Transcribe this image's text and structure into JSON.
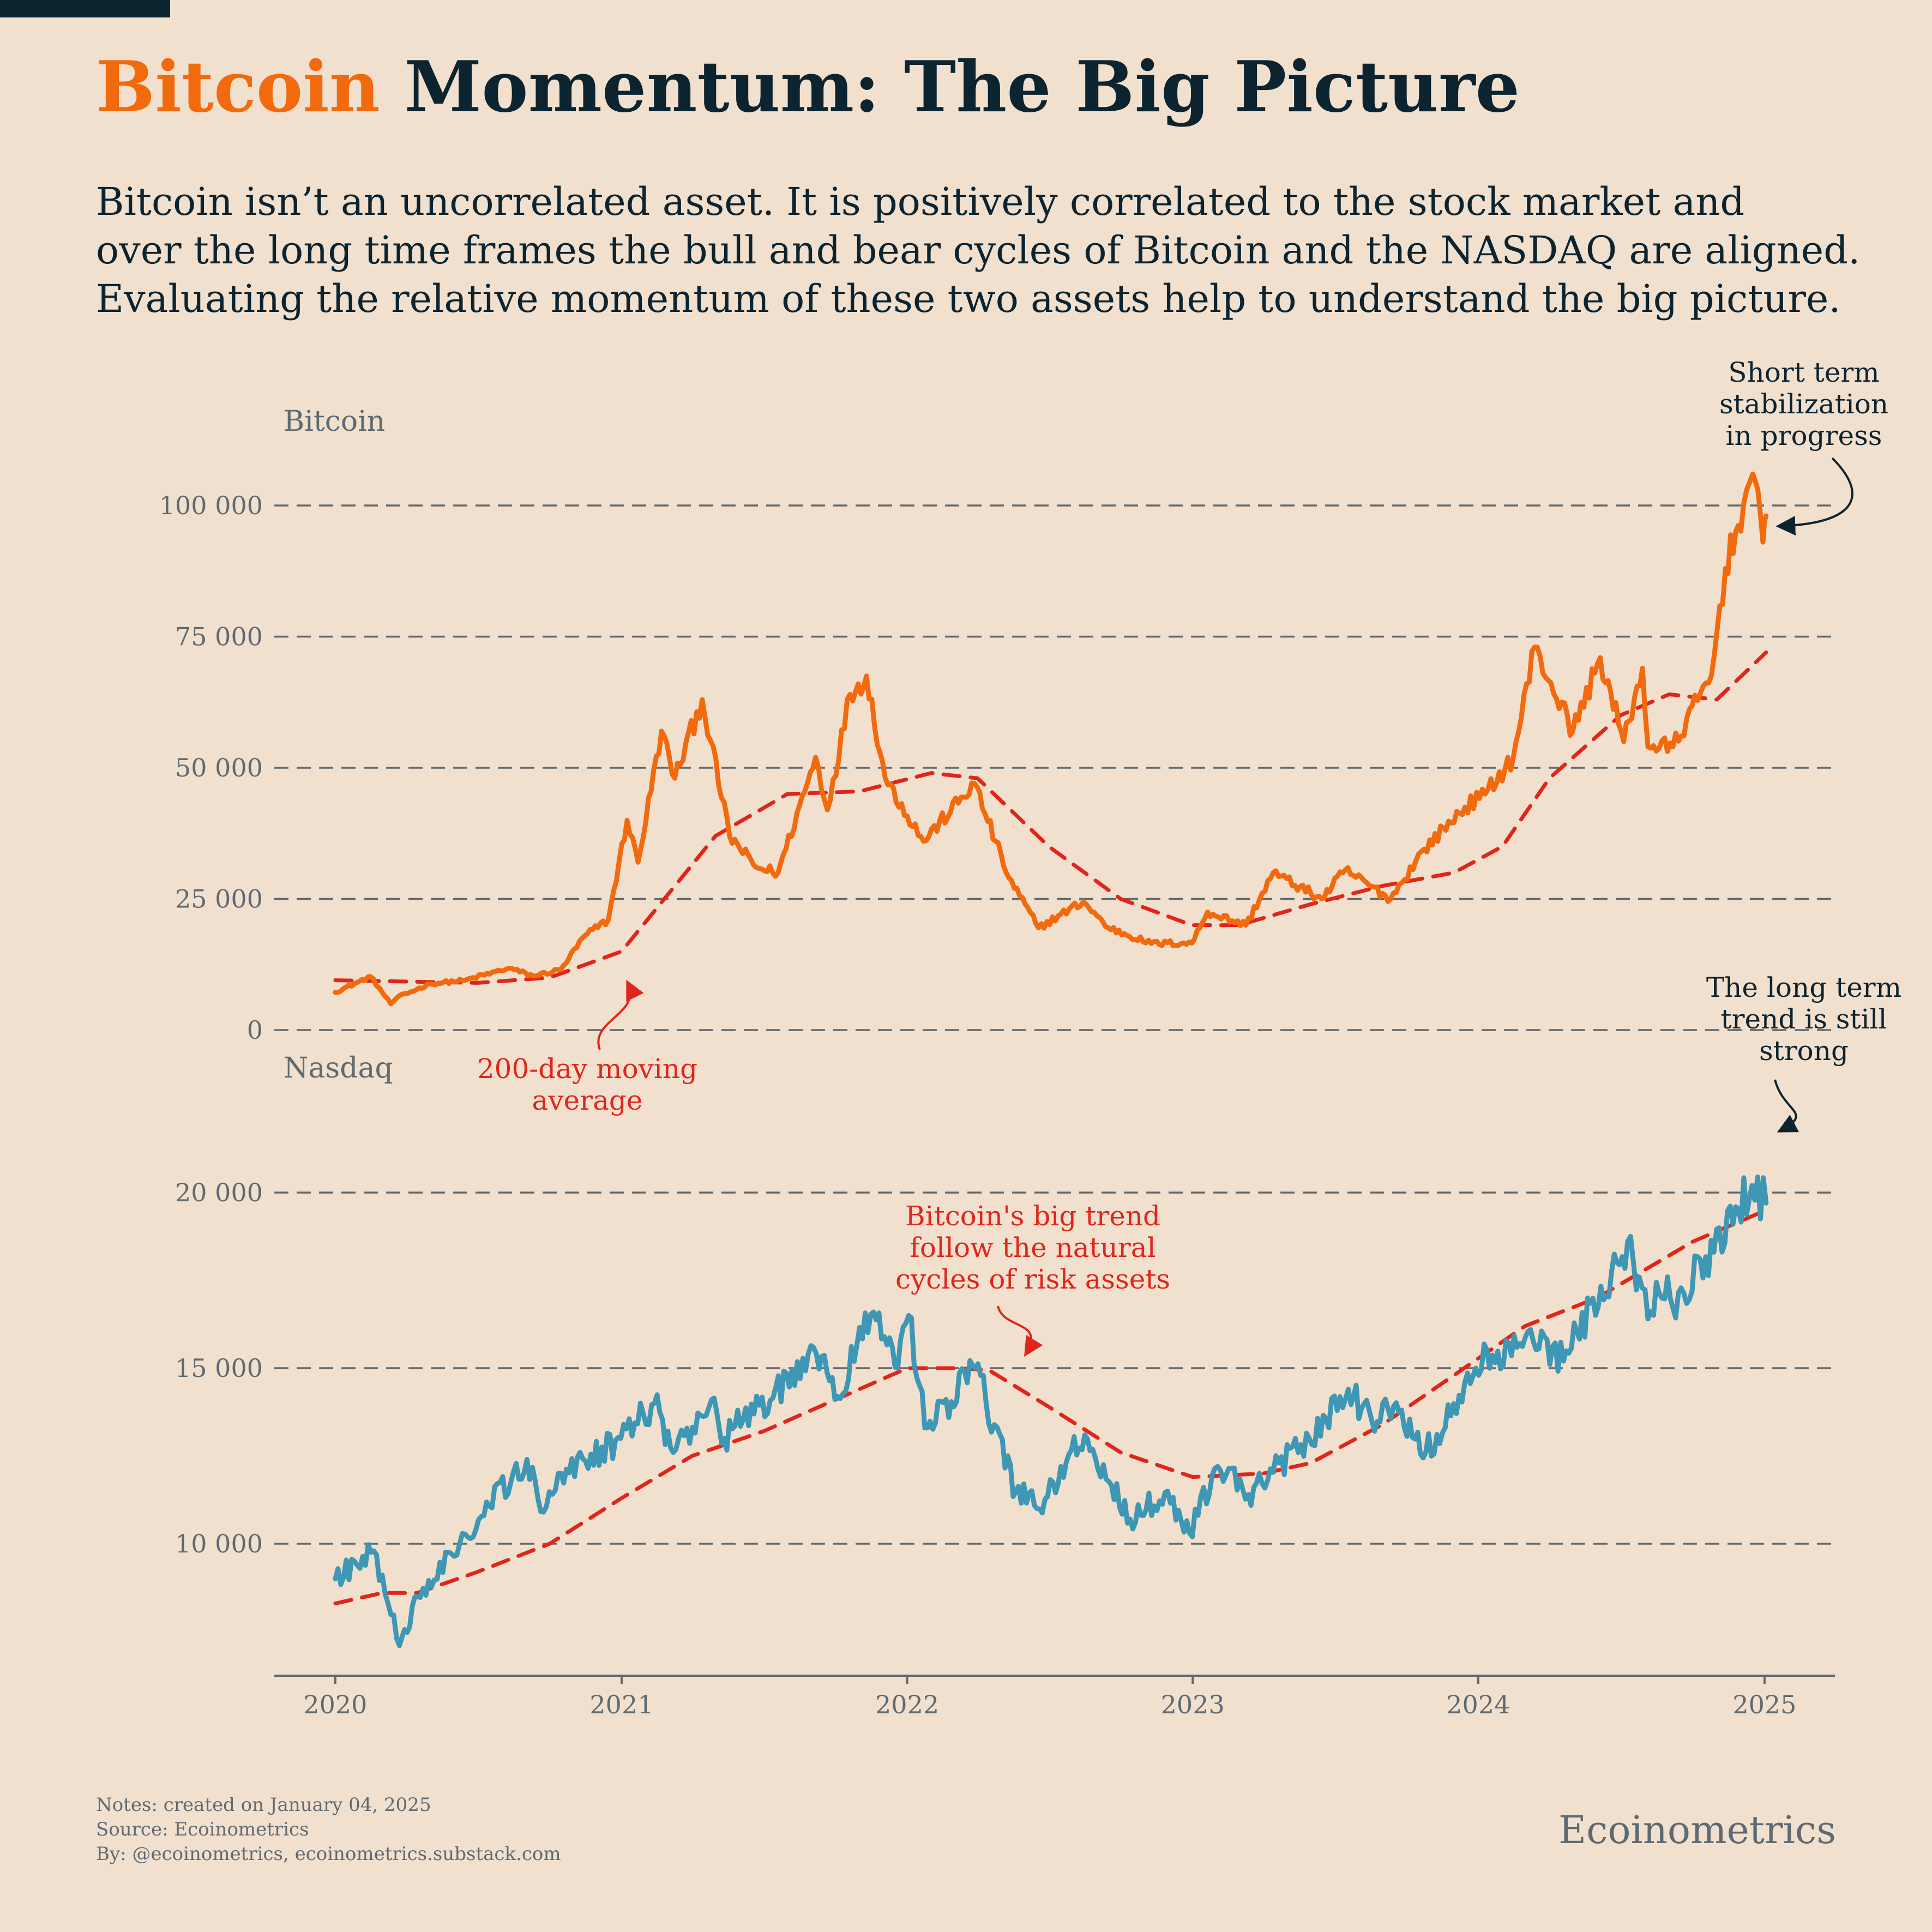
{
  "header": {
    "title_accent": "Bitcoin",
    "title_rest": " Momentum: The Big Picture",
    "subtitle_lines": [
      "Bitcoin isn’t an uncorrelated asset. It is positively correlated to the stock market and",
      "over the long time frames the bull and bear cycles of Bitcoin and the NASDAQ are aligned.",
      "Evaluating the relative momentum of these two assets help to understand the big picture."
    ]
  },
  "colors": {
    "bitcoin": "#f26a0e",
    "nasdaq": "#3d97b5",
    "moving_average": "#e0261b",
    "grid": "#5e6a72",
    "text": "#0b2430",
    "background": "#f2e0ce"
  },
  "chart_data": [
    {
      "type": "line",
      "panel_label": "Bitcoin",
      "ylim": [
        0,
        105000
      ],
      "yticks": [
        0,
        25000,
        50000,
        75000,
        100000
      ],
      "ytick_labels": [
        "0",
        "25 000",
        "50 000",
        "75 000",
        "100 000"
      ],
      "grid": "horizontal dashed",
      "series": [
        {
          "role": "price",
          "x": [
            "2020-01-01",
            "2020-02-15",
            "2020-03-12",
            "2020-03-20",
            "2020-05-01",
            "2020-06-15",
            "2020-08-10",
            "2020-09-10",
            "2020-10-15",
            "2020-11-15",
            "2020-12-15",
            "2021-01-08",
            "2021-01-22",
            "2021-02-21",
            "2021-03-10",
            "2021-04-14",
            "2021-05-19",
            "2021-06-22",
            "2021-07-20",
            "2021-09-06",
            "2021-09-21",
            "2021-10-20",
            "2021-11-10",
            "2021-12-04",
            "2022-01-22",
            "2022-03-28",
            "2022-05-11",
            "2022-06-18",
            "2022-08-14",
            "2022-09-15",
            "2022-11-09",
            "2022-12-31",
            "2023-01-20",
            "2023-03-10",
            "2023-04-14",
            "2023-06-15",
            "2023-07-15",
            "2023-09-11",
            "2023-10-24",
            "2023-12-15",
            "2024-01-10",
            "2024-02-15",
            "2024-03-13",
            "2024-05-01",
            "2024-06-05",
            "2024-07-05",
            "2024-07-29",
            "2024-08-05",
            "2024-09-06",
            "2024-10-25",
            "2024-11-12",
            "2024-12-05",
            "2024-12-17",
            "2024-12-30",
            "2025-01-03"
          ],
          "values": [
            7200,
            10200,
            5000,
            6200,
            8800,
            9500,
            11800,
            10300,
            11500,
            18000,
            21000,
            40000,
            32000,
            57000,
            48000,
            63000,
            37000,
            31000,
            30000,
            52000,
            42000,
            64000,
            67500,
            48000,
            36000,
            47000,
            29000,
            19500,
            24500,
            19500,
            16500,
            16600,
            22500,
            20000,
            30000,
            25000,
            30500,
            25000,
            34500,
            42500,
            45000,
            52000,
            73000,
            57000,
            71000,
            55000,
            69000,
            54000,
            54000,
            67500,
            88000,
            100000,
            106000,
            93000,
            98000
          ]
        },
        {
          "role": "moving_average",
          "label": "200-day moving average",
          "x": [
            "2020-01-01",
            "2020-07-01",
            "2020-10-01",
            "2021-01-01",
            "2021-05-01",
            "2021-08-01",
            "2021-11-01",
            "2022-02-01",
            "2022-04-01",
            "2022-07-01",
            "2022-10-01",
            "2022-12-31",
            "2023-03-01",
            "2023-06-01",
            "2023-09-01",
            "2023-12-01",
            "2024-02-01",
            "2024-04-01",
            "2024-07-01",
            "2024-09-01",
            "2024-11-01",
            "2025-01-03"
          ],
          "values": [
            9500,
            9000,
            10000,
            15000,
            37000,
            45000,
            45500,
            49000,
            48000,
            35000,
            25000,
            20000,
            20000,
            24000,
            27500,
            30000,
            35000,
            48000,
            60000,
            64000,
            63000,
            72000
          ]
        }
      ],
      "annotations": [
        "Short term stabilization in progress",
        "200-day moving average"
      ]
    },
    {
      "type": "line",
      "panel_label": "Nasdaq",
      "ylim": [
        6300,
        23000
      ],
      "yticks": [
        10000,
        15000,
        20000
      ],
      "ytick_labels": [
        "10 000",
        "15 000",
        "20 000"
      ],
      "grid": "horizontal dashed",
      "series": [
        {
          "role": "price",
          "x": [
            "2020-01-01",
            "2020-02-19",
            "2020-03-23",
            "2020-04-15",
            "2020-06-08",
            "2020-09-02",
            "2020-09-23",
            "2020-10-12",
            "2020-12-31",
            "2021-02-12",
            "2021-03-08",
            "2021-04-26",
            "2021-05-12",
            "2021-09-07",
            "2021-10-04",
            "2021-11-19",
            "2021-12-20",
            "2022-01-03",
            "2022-01-27",
            "2022-03-29",
            "2022-05-20",
            "2022-06-16",
            "2022-08-16",
            "2022-10-13",
            "2022-11-30",
            "2022-12-28",
            "2023-02-02",
            "2023-03-13",
            "2023-05-30",
            "2023-07-19",
            "2023-08-18",
            "2023-09-01",
            "2023-10-26",
            "2023-12-29",
            "2024-03-08",
            "2024-04-19",
            "2024-07-10",
            "2024-08-05",
            "2024-08-30",
            "2024-09-06",
            "2024-12-16",
            "2025-01-03"
          ],
          "values": [
            9000,
            9800,
            7100,
            8500,
            10000,
            12400,
            10900,
            12000,
            13000,
            14000,
            12600,
            14100,
            13000,
            15400,
            14200,
            16600,
            15000,
            16500,
            13300,
            15000,
            11500,
            11000,
            13100,
            10700,
            11500,
            10300,
            12200,
            11400,
            13000,
            14400,
            13500,
            14000,
            12600,
            15000,
            16100,
            15200,
            18600,
            16400,
            17600,
            16700,
            20200,
            19700
          ]
        },
        {
          "role": "moving_average",
          "label": "200-day moving average",
          "x": [
            "2020-01-01",
            "2020-03-01",
            "2020-04-15",
            "2020-07-01",
            "2020-10-01",
            "2021-01-01",
            "2021-04-01",
            "2021-07-01",
            "2021-10-01",
            "2022-01-01",
            "2022-03-01",
            "2022-04-15",
            "2022-07-01",
            "2022-10-01",
            "2023-01-01",
            "2023-04-01",
            "2023-06-01",
            "2023-09-01",
            "2023-12-01",
            "2024-03-01",
            "2024-06-01",
            "2024-08-01",
            "2024-10-01",
            "2025-01-03"
          ],
          "values": [
            8300,
            8600,
            8600,
            9200,
            10000,
            11300,
            12500,
            13200,
            14100,
            15000,
            15000,
            14950,
            13900,
            12600,
            11900,
            12000,
            12300,
            13400,
            14800,
            16200,
            17000,
            17800,
            18600,
            19500
          ]
        }
      ],
      "annotations": [
        "The long term trend is still strong",
        "Bitcoin's big trend follow the natural cycles of risk assets"
      ]
    }
  ],
  "x_axis": {
    "tick_labels": [
      "2020",
      "2021",
      "2022",
      "2023",
      "2024",
      "2025"
    ],
    "xlim": [
      "2019-10-15",
      "2025-04-01"
    ]
  },
  "annotations": {
    "short_term": [
      "Short term",
      "stabilization",
      "in progress"
    ],
    "long_term": [
      "The long term",
      "trend is still",
      "strong"
    ],
    "moving_average": [
      "200-day moving",
      "average"
    ],
    "big_trend": [
      "Bitcoin's big trend",
      "follow the natural",
      "cycles of risk assets"
    ]
  },
  "footer": {
    "notes": [
      "Notes: created on January 04, 2025",
      "Source: Ecoinometrics",
      "By: @ecoinometrics, ecoinometrics.substack.com"
    ],
    "brand": "Ecoinometrics"
  }
}
